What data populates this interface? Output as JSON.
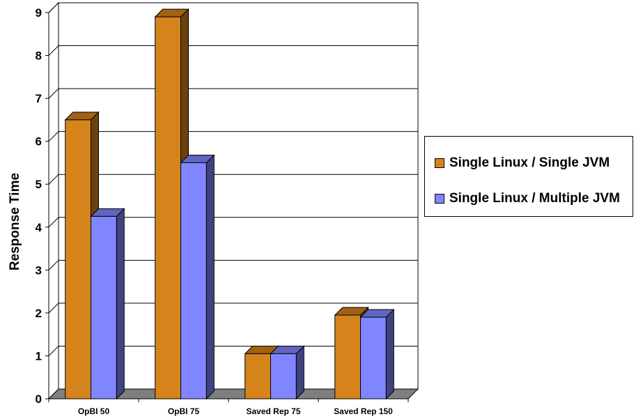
{
  "chart_data": {
    "type": "bar",
    "title": "",
    "xlabel": "",
    "ylabel": "Response Time",
    "ylim": [
      0,
      9
    ],
    "yticks": [
      0,
      1,
      2,
      3,
      4,
      5,
      6,
      7,
      8,
      9
    ],
    "grid": true,
    "legend_position": "right",
    "categories": [
      "OpBI 50",
      "OpBI 75",
      "Saved Rep 75",
      "Saved Rep 150"
    ],
    "series": [
      {
        "name": "Single Linux / Single JVM",
        "values": [
          6.5,
          8.9,
          1.05,
          1.95
        ],
        "color": "#d4841a"
      },
      {
        "name": "Single Linux / Multiple JVM",
        "values": [
          4.25,
          5.5,
          1.05,
          1.9
        ],
        "color": "#8086ff"
      }
    ]
  }
}
